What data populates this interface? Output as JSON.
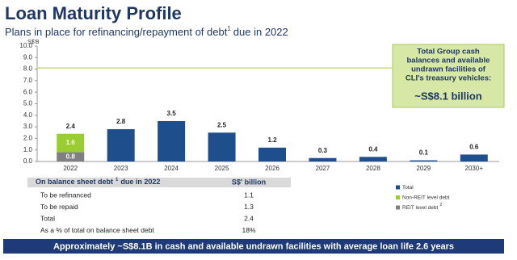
{
  "chart_data": {
    "type": "bar",
    "title": "Loan Maturity Profile",
    "subtitle": {
      "text": "Plans in place for refinancing/repayment of debt",
      "footnote": "1",
      "text_after": "due in 2022"
    },
    "y_label": "S$'B",
    "categories": [
      "2022",
      "2023",
      "2024",
      "2025",
      "2026",
      "2027",
      "2028",
      "2029",
      "2030+"
    ],
    "series": [
      {
        "name": "Total",
        "color": "#1f4e8c",
        "values": [
          2.4,
          2.8,
          3.5,
          2.5,
          1.2,
          0.3,
          0.4,
          0.1,
          0.6
        ]
      },
      {
        "name": "Non-REIT level debt",
        "color": "#9acd32",
        "stack": true,
        "values": [
          1.6,
          null,
          null,
          null,
          null,
          null,
          null,
          null,
          null
        ]
      },
      {
        "name": "REIT level debt",
        "footnote": "2",
        "color": "#808080",
        "stack": true,
        "values": [
          0.8,
          null,
          null,
          null,
          null,
          null,
          null,
          null,
          null
        ]
      }
    ],
    "ylim": [
      0,
      10
    ],
    "yticks": [
      {
        "value": 0,
        "label": "0.0"
      },
      {
        "value": 1,
        "label": "1.0"
      },
      {
        "value": 2,
        "label": "2.0"
      },
      {
        "value": 3,
        "label": "3.0"
      },
      {
        "value": 4,
        "label": "4.0"
      },
      {
        "value": 5,
        "label": "5.0"
      },
      {
        "value": 6,
        "label": "6.0"
      },
      {
        "value": 7,
        "label": "7.0"
      },
      {
        "value": 8,
        "label": "8.0"
      },
      {
        "value": 9,
        "label": "9.0"
      },
      {
        "value": 10,
        "label": "10.0"
      }
    ],
    "reference_line": {
      "value": 8.1,
      "color": "#c5dd7f"
    }
  },
  "callout": {
    "text": [
      "Total Group cash",
      "balances and available",
      "undrawn facilities of",
      "CLI's treasury vehicles:"
    ],
    "highlight": "~S$8.1 billion"
  },
  "table": {
    "header": {
      "text": "On balance sheet debt",
      "footnote": "1",
      "text_after": "due in 2022",
      "unit": "S$' billion"
    },
    "rows": [
      [
        "To be refinanced",
        "1.1"
      ],
      [
        "To be repaid",
        "1.3"
      ],
      [
        "Total",
        "2.4"
      ],
      [
        "As a % of total on balance sheet debt",
        "18%"
      ]
    ]
  },
  "footer_banner": "Approximately ~S$8.1B in cash and available undrawn facilities with average loan life 2.6 years"
}
